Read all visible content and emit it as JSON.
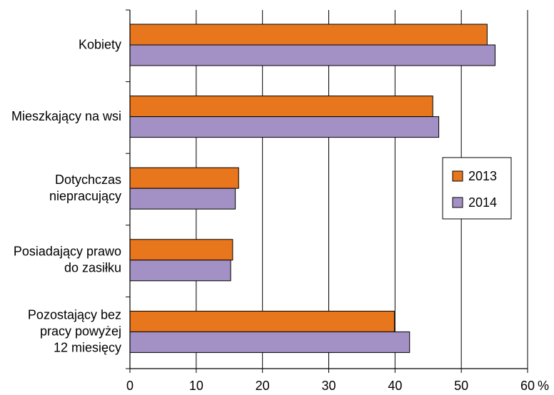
{
  "chart_data": {
    "type": "bar",
    "orientation": "horizontal",
    "categories": [
      "Kobiety",
      "Mieszkający na wsi",
      "Dotychczas\nniepracujący",
      "Posiadający prawo\ndo zasiłku",
      "Pozostający bez\npracy powyżej\n12 miesięcy"
    ],
    "series": [
      {
        "name": "2013",
        "color": "#e8761c",
        "values": [
          53.9,
          45.7,
          16.4,
          15.5,
          39.9
        ]
      },
      {
        "name": "2014",
        "color": "#a390c4",
        "values": [
          55.1,
          46.6,
          15.9,
          15.2,
          42.2
        ]
      }
    ],
    "xlim": [
      0,
      60
    ],
    "xticks": [
      0,
      10,
      20,
      30,
      40,
      50,
      60
    ],
    "xunit": "%",
    "grid": "vertical",
    "legend": "right",
    "title": "",
    "xlabel": "",
    "ylabel": ""
  }
}
